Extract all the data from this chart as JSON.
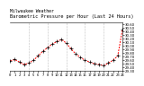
{
  "title": "Barometric Pressure per Hour (Last 24 Hours)",
  "subtitle": "Milwaukee Weather",
  "hours": [
    0,
    1,
    2,
    3,
    4,
    5,
    6,
    7,
    8,
    9,
    10,
    11,
    12,
    13,
    14,
    15,
    16,
    17,
    18,
    19,
    20,
    21,
    22,
    23,
    24
  ],
  "pressure": [
    29.58,
    29.62,
    29.55,
    29.48,
    29.52,
    29.6,
    29.72,
    29.85,
    29.95,
    30.05,
    30.12,
    30.18,
    30.08,
    29.92,
    29.78,
    29.68,
    29.6,
    29.55,
    29.5,
    29.48,
    29.45,
    29.52,
    29.6,
    29.72,
    30.45
  ],
  "line_color": "#ff0000",
  "marker_color": "#000000",
  "background_color": "#ffffff",
  "grid_color": "#888888",
  "ymin": 29.3,
  "ymax": 30.65,
  "ytick_min": 29.3,
  "ytick_max": 30.6,
  "ytick_step": 0.1,
  "title_fontsize": 3.8,
  "subtitle_fontsize": 3.5,
  "tick_fontsize": 2.8
}
